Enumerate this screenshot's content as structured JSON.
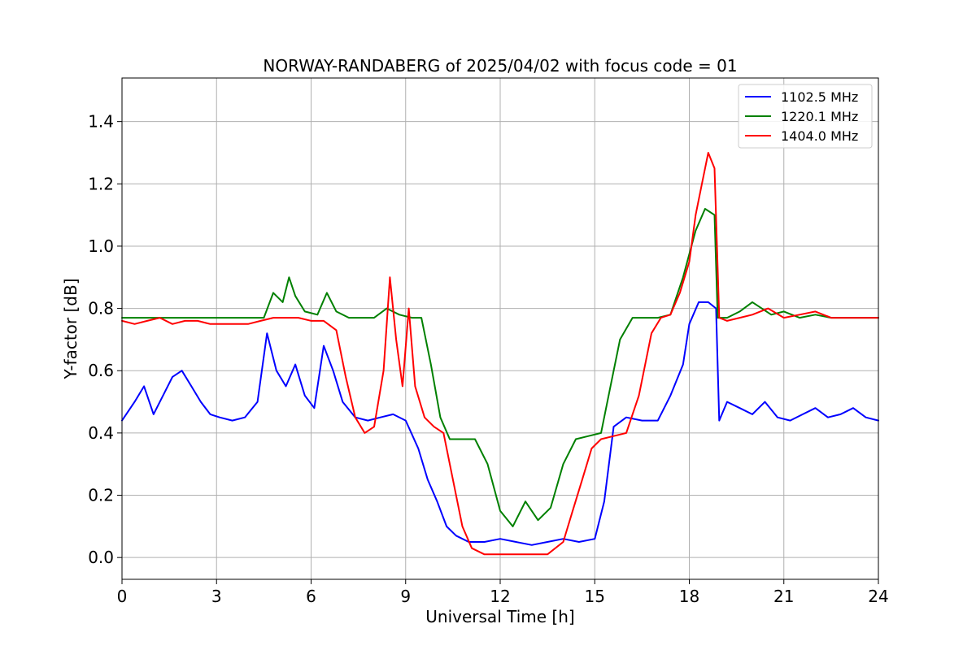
{
  "chart_data": {
    "type": "line",
    "title": "NORWAY-RANDABERG of 2025/04/02 with focus code = 01",
    "xlabel": "Universal Time [h]",
    "ylabel": "Y-factor [dB]",
    "xlim": [
      0,
      24
    ],
    "ylim": [
      -0.07,
      1.54
    ],
    "x_ticks": [
      0,
      3,
      6,
      9,
      12,
      15,
      18,
      21,
      24
    ],
    "y_ticks": [
      0.0,
      0.2,
      0.4,
      0.6,
      0.8,
      1.0,
      1.2,
      1.4
    ],
    "x_tick_labels": [
      "0",
      "3",
      "6",
      "9",
      "12",
      "15",
      "18",
      "21",
      "24"
    ],
    "y_tick_labels": [
      "0.0",
      "0.2",
      "0.4",
      "0.6",
      "0.8",
      "1.0",
      "1.2",
      "1.4"
    ],
    "grid": true,
    "legend_position": "top-right",
    "series": [
      {
        "name": "1102.5 MHz",
        "color": "#0000ff",
        "x": [
          0,
          0.4,
          0.7,
          1.0,
          1.3,
          1.6,
          1.9,
          2.2,
          2.5,
          2.8,
          3.1,
          3.5,
          3.9,
          4.3,
          4.6,
          4.9,
          5.2,
          5.5,
          5.8,
          6.1,
          6.4,
          6.7,
          7.0,
          7.4,
          7.8,
          8.2,
          8.6,
          9.0,
          9.4,
          9.7,
          10.0,
          10.3,
          10.6,
          11.0,
          11.5,
          12.0,
          12.5,
          13.0,
          13.5,
          14.0,
          14.5,
          15.0,
          15.3,
          15.6,
          16.0,
          16.5,
          17.0,
          17.4,
          17.8,
          18.0,
          18.3,
          18.6,
          18.85,
          18.95,
          19.2,
          19.6,
          20.0,
          20.4,
          20.8,
          21.2,
          21.6,
          22.0,
          22.4,
          22.8,
          23.2,
          23.6,
          24.0
        ],
        "y": [
          0.44,
          0.5,
          0.55,
          0.46,
          0.52,
          0.58,
          0.6,
          0.55,
          0.5,
          0.46,
          0.45,
          0.44,
          0.45,
          0.5,
          0.72,
          0.6,
          0.55,
          0.62,
          0.52,
          0.48,
          0.68,
          0.6,
          0.5,
          0.45,
          0.44,
          0.45,
          0.46,
          0.44,
          0.35,
          0.25,
          0.18,
          0.1,
          0.07,
          0.05,
          0.05,
          0.06,
          0.05,
          0.04,
          0.05,
          0.06,
          0.05,
          0.06,
          0.18,
          0.42,
          0.45,
          0.44,
          0.44,
          0.52,
          0.62,
          0.75,
          0.82,
          0.82,
          0.8,
          0.44,
          0.5,
          0.48,
          0.46,
          0.5,
          0.45,
          0.44,
          0.46,
          0.48,
          0.45,
          0.46,
          0.48,
          0.45,
          0.44
        ]
      },
      {
        "name": "1220.1 MHz",
        "color": "#008000",
        "x": [
          0,
          0.5,
          1.0,
          1.5,
          2.0,
          2.5,
          3.0,
          3.5,
          4.0,
          4.5,
          4.8,
          5.1,
          5.3,
          5.5,
          5.8,
          6.2,
          6.5,
          6.8,
          7.2,
          7.6,
          8.0,
          8.4,
          8.8,
          9.2,
          9.5,
          9.8,
          10.1,
          10.4,
          10.8,
          11.2,
          11.6,
          12.0,
          12.4,
          12.8,
          13.2,
          13.6,
          14.0,
          14.4,
          14.8,
          15.2,
          15.5,
          15.8,
          16.2,
          16.6,
          17.0,
          17.4,
          17.8,
          18.2,
          18.5,
          18.8,
          18.9,
          19.2,
          19.6,
          20.0,
          20.3,
          20.6,
          21.0,
          21.5,
          22.0,
          22.5,
          23.0,
          23.5,
          24.0
        ],
        "y": [
          0.77,
          0.77,
          0.77,
          0.77,
          0.77,
          0.77,
          0.77,
          0.77,
          0.77,
          0.77,
          0.85,
          0.82,
          0.9,
          0.84,
          0.79,
          0.78,
          0.85,
          0.79,
          0.77,
          0.77,
          0.77,
          0.8,
          0.78,
          0.77,
          0.77,
          0.62,
          0.45,
          0.38,
          0.38,
          0.38,
          0.3,
          0.15,
          0.1,
          0.18,
          0.12,
          0.16,
          0.3,
          0.38,
          0.39,
          0.4,
          0.55,
          0.7,
          0.77,
          0.77,
          0.77,
          0.78,
          0.9,
          1.05,
          1.12,
          1.1,
          0.77,
          0.77,
          0.79,
          0.82,
          0.8,
          0.78,
          0.79,
          0.77,
          0.78,
          0.77,
          0.77,
          0.77,
          0.77
        ]
      },
      {
        "name": "1404.0 MHz",
        "color": "#ff0000",
        "x": [
          0,
          0.4,
          0.8,
          1.2,
          1.6,
          2.0,
          2.4,
          2.8,
          3.2,
          3.6,
          4.0,
          4.4,
          4.8,
          5.2,
          5.6,
          6.0,
          6.4,
          6.8,
          7.1,
          7.4,
          7.7,
          8.0,
          8.3,
          8.5,
          8.7,
          8.9,
          9.1,
          9.3,
          9.6,
          9.9,
          10.2,
          10.5,
          10.8,
          11.1,
          11.5,
          12.0,
          12.5,
          13.0,
          13.5,
          14.0,
          14.3,
          14.6,
          14.9,
          15.2,
          15.6,
          16.0,
          16.4,
          16.8,
          17.1,
          17.4,
          17.7,
          18.0,
          18.2,
          18.4,
          18.6,
          18.8,
          18.95,
          19.2,
          19.6,
          20.0,
          20.5,
          21.0,
          21.5,
          22.0,
          22.5,
          23.0,
          23.5,
          24.0
        ],
        "y": [
          0.76,
          0.75,
          0.76,
          0.77,
          0.75,
          0.76,
          0.76,
          0.75,
          0.75,
          0.75,
          0.75,
          0.76,
          0.77,
          0.77,
          0.77,
          0.76,
          0.76,
          0.73,
          0.58,
          0.45,
          0.4,
          0.42,
          0.6,
          0.9,
          0.7,
          0.55,
          0.8,
          0.55,
          0.45,
          0.42,
          0.4,
          0.25,
          0.1,
          0.03,
          0.01,
          0.01,
          0.01,
          0.01,
          0.01,
          0.05,
          0.15,
          0.25,
          0.35,
          0.38,
          0.39,
          0.4,
          0.52,
          0.72,
          0.77,
          0.78,
          0.85,
          0.95,
          1.1,
          1.2,
          1.3,
          1.25,
          0.77,
          0.76,
          0.77,
          0.78,
          0.8,
          0.77,
          0.78,
          0.79,
          0.77,
          0.77,
          0.77,
          0.77
        ]
      }
    ]
  }
}
